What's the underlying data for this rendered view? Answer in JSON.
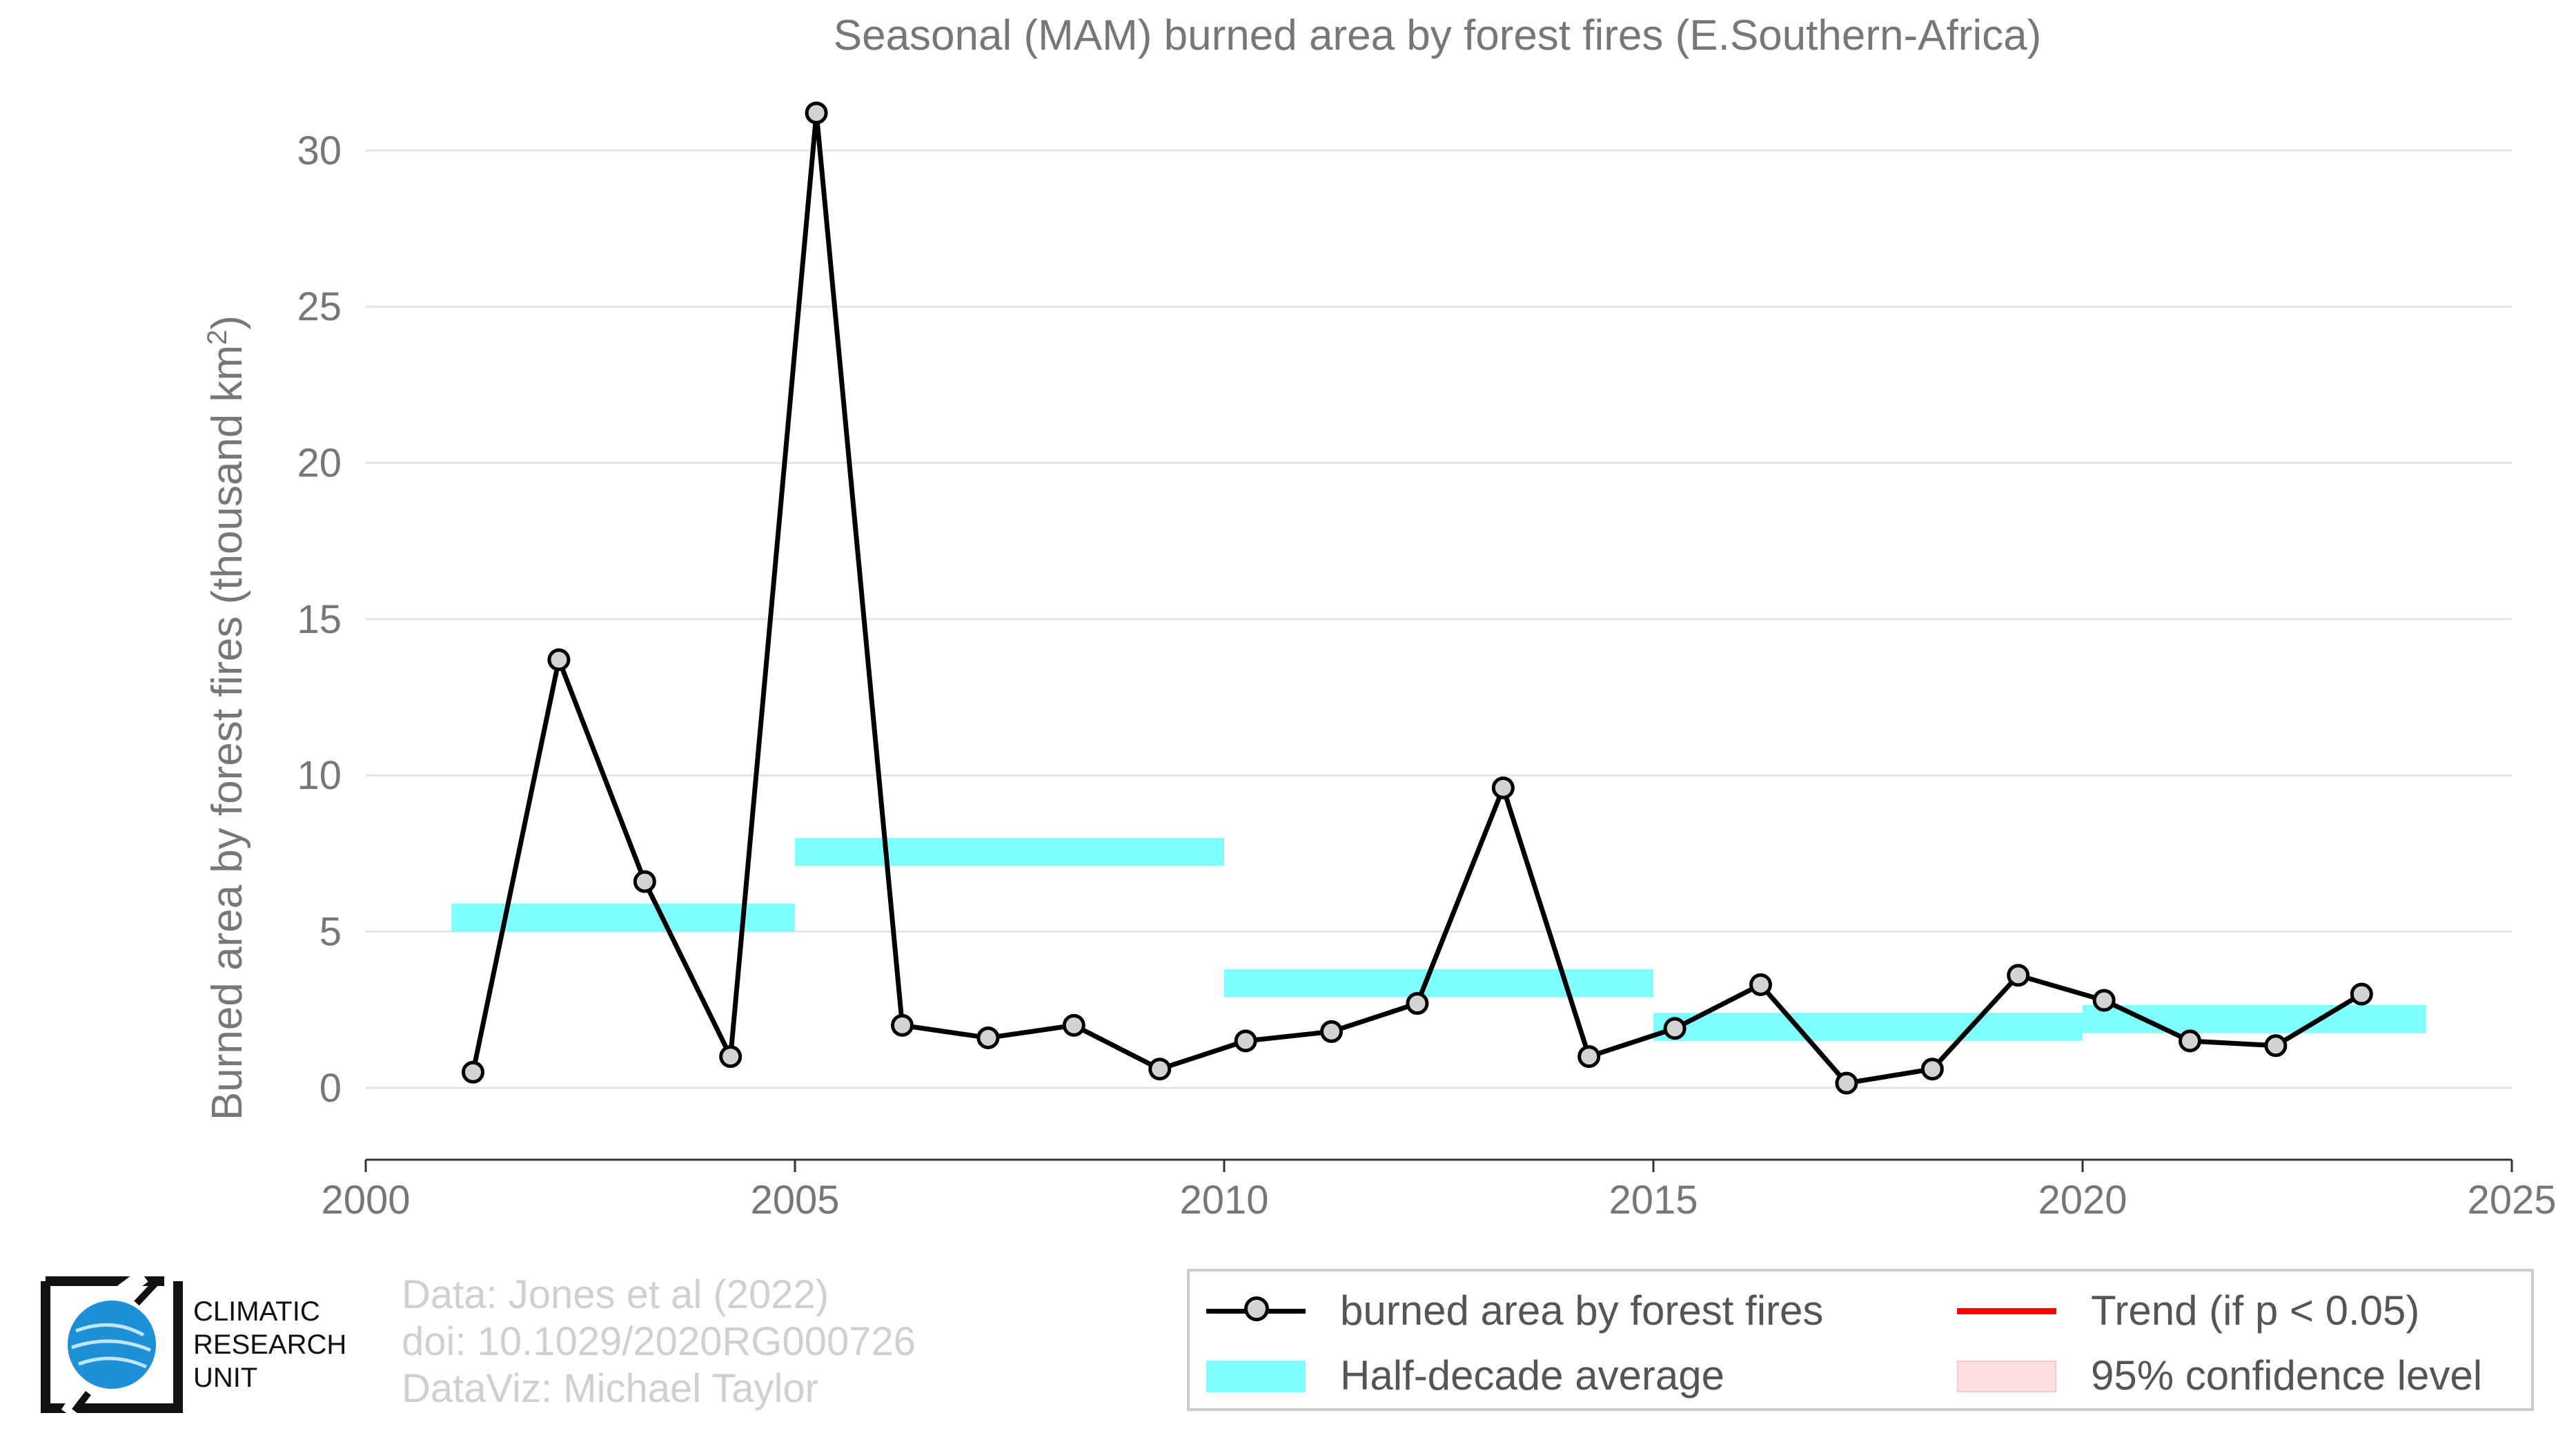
{
  "chart_data": {
    "type": "line",
    "title": "Seasonal (MAM) burned area by forest fires (E.Southern-Africa)",
    "xlabel": "",
    "ylabel": "Burned area by forest fires (thousand km",
    "ylabel_superscript": "2",
    "ylabel_suffix": ")",
    "xlim": [
      2000,
      2025
    ],
    "ylim": [
      -2.3,
      31.5
    ],
    "xticks": [
      2000,
      2005,
      2010,
      2015,
      2020,
      2025
    ],
    "yticks": [
      0,
      5,
      10,
      15,
      20,
      25,
      30
    ],
    "grid": "horizontal",
    "series": [
      {
        "name": "burned area by forest fires",
        "color": "#000000",
        "marker_fill": "#d3d3d3",
        "x": [
          2001.25,
          2002.25,
          2003.25,
          2004.25,
          2005.25,
          2006.25,
          2007.25,
          2008.25,
          2009.25,
          2010.25,
          2011.25,
          2012.25,
          2013.25,
          2014.25,
          2015.25,
          2016.25,
          2017.25,
          2018.25,
          2019.25,
          2020.25,
          2021.25,
          2022.25,
          2023.25
        ],
        "values": [
          0.5,
          13.7,
          6.6,
          1.0,
          31.2,
          2.0,
          1.6,
          2.0,
          0.6,
          1.5,
          1.8,
          2.7,
          9.6,
          1.0,
          1.9,
          3.3,
          0.15,
          0.6,
          3.6,
          2.8,
          1.5,
          1.35,
          3.0
        ]
      }
    ],
    "half_decade_average": {
      "name": "Half-decade average",
      "color": "#7fffff",
      "half_thickness": 0.45,
      "bars": [
        {
          "x_start": 2001.0,
          "x_end": 2005.0,
          "value": 5.45
        },
        {
          "x_start": 2005.0,
          "x_end": 2010.0,
          "value": 7.55
        },
        {
          "x_start": 2010.0,
          "x_end": 2015.0,
          "value": 3.35
        },
        {
          "x_start": 2015.0,
          "x_end": 2020.0,
          "value": 1.95
        },
        {
          "x_start": 2020.0,
          "x_end": 2024.0,
          "value": 2.2
        }
      ]
    },
    "legend": {
      "placement": "bottom-right",
      "items": [
        {
          "label": "burned area by forest fires",
          "kind": "line-marker",
          "color": "#000000"
        },
        {
          "label": "Trend (if p < 0.05)",
          "kind": "line",
          "color": "#ff0000"
        },
        {
          "label": "Half-decade average",
          "kind": "band",
          "color": "#7fffff"
        },
        {
          "label": "95% confidence level",
          "kind": "band",
          "color": "#ffe0e0"
        }
      ]
    }
  },
  "logo": {
    "lines": [
      "CLIMATIC",
      "RESEARCH",
      "UNIT"
    ]
  },
  "credits": {
    "data": "Data: Jones et al (2022)",
    "doi": "doi: 10.1029/2020RG000726",
    "dataviz": "DataViz: Michael Taylor"
  },
  "colors": {
    "axis_text": "#777777",
    "grid": "#e5e5e5",
    "credits": "#d0d0d0",
    "logo_globe": "#1e90d8"
  }
}
